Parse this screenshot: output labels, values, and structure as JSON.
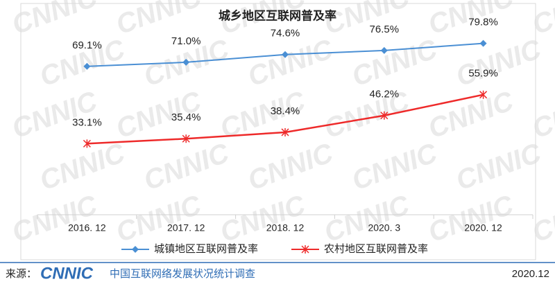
{
  "chart_data": {
    "type": "line",
    "title": "城乡地区互联网普及率",
    "categories": [
      "2016. 12",
      "2017. 12",
      "2018. 12",
      "2020. 3",
      "2020. 12"
    ],
    "series": [
      {
        "name": "城镇地区互联网普及率",
        "color": "#4a8fd4",
        "marker": "diamond",
        "values": [
          69.1,
          71.0,
          74.6,
          76.5,
          79.8
        ],
        "value_labels": [
          "69.1%",
          "71.0%",
          "74.6%",
          "76.5%",
          "79.8%"
        ]
      },
      {
        "name": "农村地区互联网普及率",
        "color": "#ee2a2a",
        "marker": "star",
        "values": [
          33.1,
          35.4,
          38.4,
          46.2,
          55.9
        ],
        "value_labels": [
          "33.1%",
          "35.4%",
          "38.4%",
          "46.2%",
          "55.9%"
        ]
      }
    ]
  },
  "watermark": "CNNIC",
  "footer": {
    "source_label": "来源：",
    "logo": "CNNIC",
    "source_text": "中国互联网络发展状况统计调查",
    "date": "2020.12"
  }
}
